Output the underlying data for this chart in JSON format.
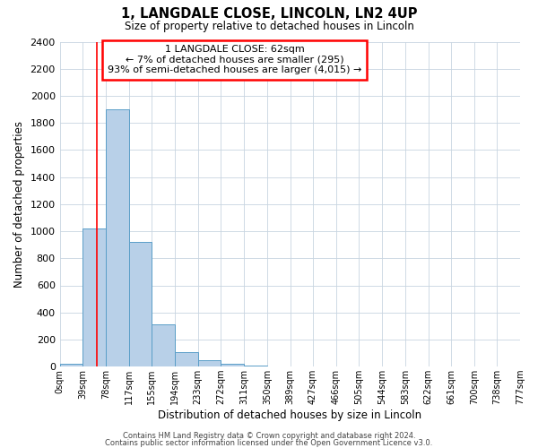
{
  "title": "1, LANGDALE CLOSE, LINCOLN, LN2 4UP",
  "subtitle": "Size of property relative to detached houses in Lincoln",
  "xlabel": "Distribution of detached houses by size in Lincoln",
  "ylabel": "Number of detached properties",
  "bar_color": "#b8d0e8",
  "bar_edge_color": "#5a9ec8",
  "background_color": "#ffffff",
  "grid_color": "#c8d4e0",
  "bin_edges": [
    0,
    39,
    78,
    117,
    155,
    194,
    233,
    272,
    311,
    350,
    389,
    427,
    466,
    505,
    544,
    583,
    622,
    661,
    700,
    738,
    777
  ],
  "bin_labels": [
    "0sqm",
    "39sqm",
    "78sqm",
    "117sqm",
    "155sqm",
    "194sqm",
    "233sqm",
    "272sqm",
    "311sqm",
    "350sqm",
    "389sqm",
    "427sqm",
    "466sqm",
    "505sqm",
    "544sqm",
    "583sqm",
    "622sqm",
    "661sqm",
    "700sqm",
    "738sqm",
    "777sqm"
  ],
  "bar_heights": [
    20,
    1020,
    1900,
    920,
    315,
    105,
    45,
    20,
    5,
    0,
    0,
    0,
    0,
    0,
    0,
    0,
    0,
    0,
    0,
    0
  ],
  "ylim": [
    0,
    2400
  ],
  "yticks": [
    0,
    200,
    400,
    600,
    800,
    1000,
    1200,
    1400,
    1600,
    1800,
    2000,
    2200,
    2400
  ],
  "annotation_line1": "1 LANGDALE CLOSE: 62sqm",
  "annotation_line2": "← 7% of detached houses are smaller (295)",
  "annotation_line3": "93% of semi-detached houses are larger (4,015) →",
  "red_line_x": 62,
  "footer_line1": "Contains HM Land Registry data © Crown copyright and database right 2024.",
  "footer_line2": "Contains public sector information licensed under the Open Government Licence v3.0."
}
